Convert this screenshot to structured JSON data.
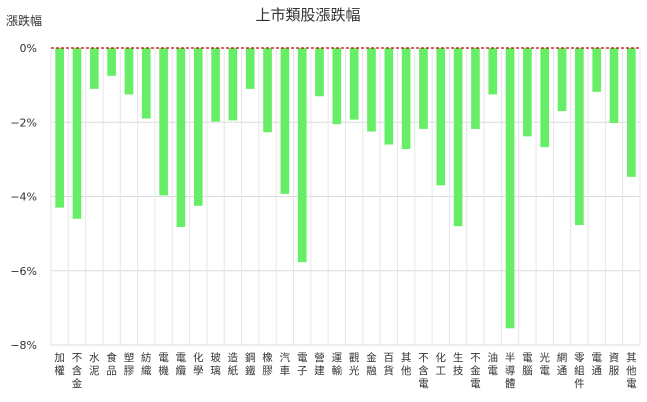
{
  "chart_data": {
    "type": "bar",
    "title": "上市類股漲跌幅",
    "ylabel": "漲跌幅",
    "xlabel": "",
    "ylim": [
      -8,
      0
    ],
    "yticks": [
      0,
      -2,
      -4,
      -6,
      -8
    ],
    "ytick_labels": [
      "0%",
      "−2%",
      "−4%",
      "−6%",
      "−8%"
    ],
    "grid": true,
    "legend": "none",
    "bar_color": "#66ee66",
    "baseline_color": "#cc0000",
    "categories": [
      "加權",
      "不含金",
      "水泥",
      "食品",
      "塑膠",
      "紡織",
      "電機",
      "電纜",
      "化學",
      "玻璃",
      "造紙",
      "鋼鐵",
      "橡膠",
      "汽車",
      "電子",
      "營建",
      "運輸",
      "觀光",
      "金融",
      "百貨",
      "其他",
      "不含電",
      "化工",
      "生技",
      "不金電",
      "油電",
      "半導體",
      "電腦",
      "光電",
      "網通",
      "零組件",
      "電通",
      "資服",
      "其他電"
    ],
    "values": [
      -4.3,
      -4.6,
      -1.1,
      -0.75,
      -1.25,
      -1.9,
      -3.97,
      -4.82,
      -4.25,
      -1.98,
      -1.95,
      -1.1,
      -2.27,
      -3.93,
      -5.77,
      -1.3,
      -2.05,
      -1.93,
      -2.25,
      -2.6,
      -2.72,
      -2.18,
      -3.7,
      -4.8,
      -2.18,
      -1.25,
      -7.55,
      -2.38,
      -2.67,
      -1.7,
      -4.77,
      -1.18,
      -2.02,
      -3.47
    ]
  }
}
